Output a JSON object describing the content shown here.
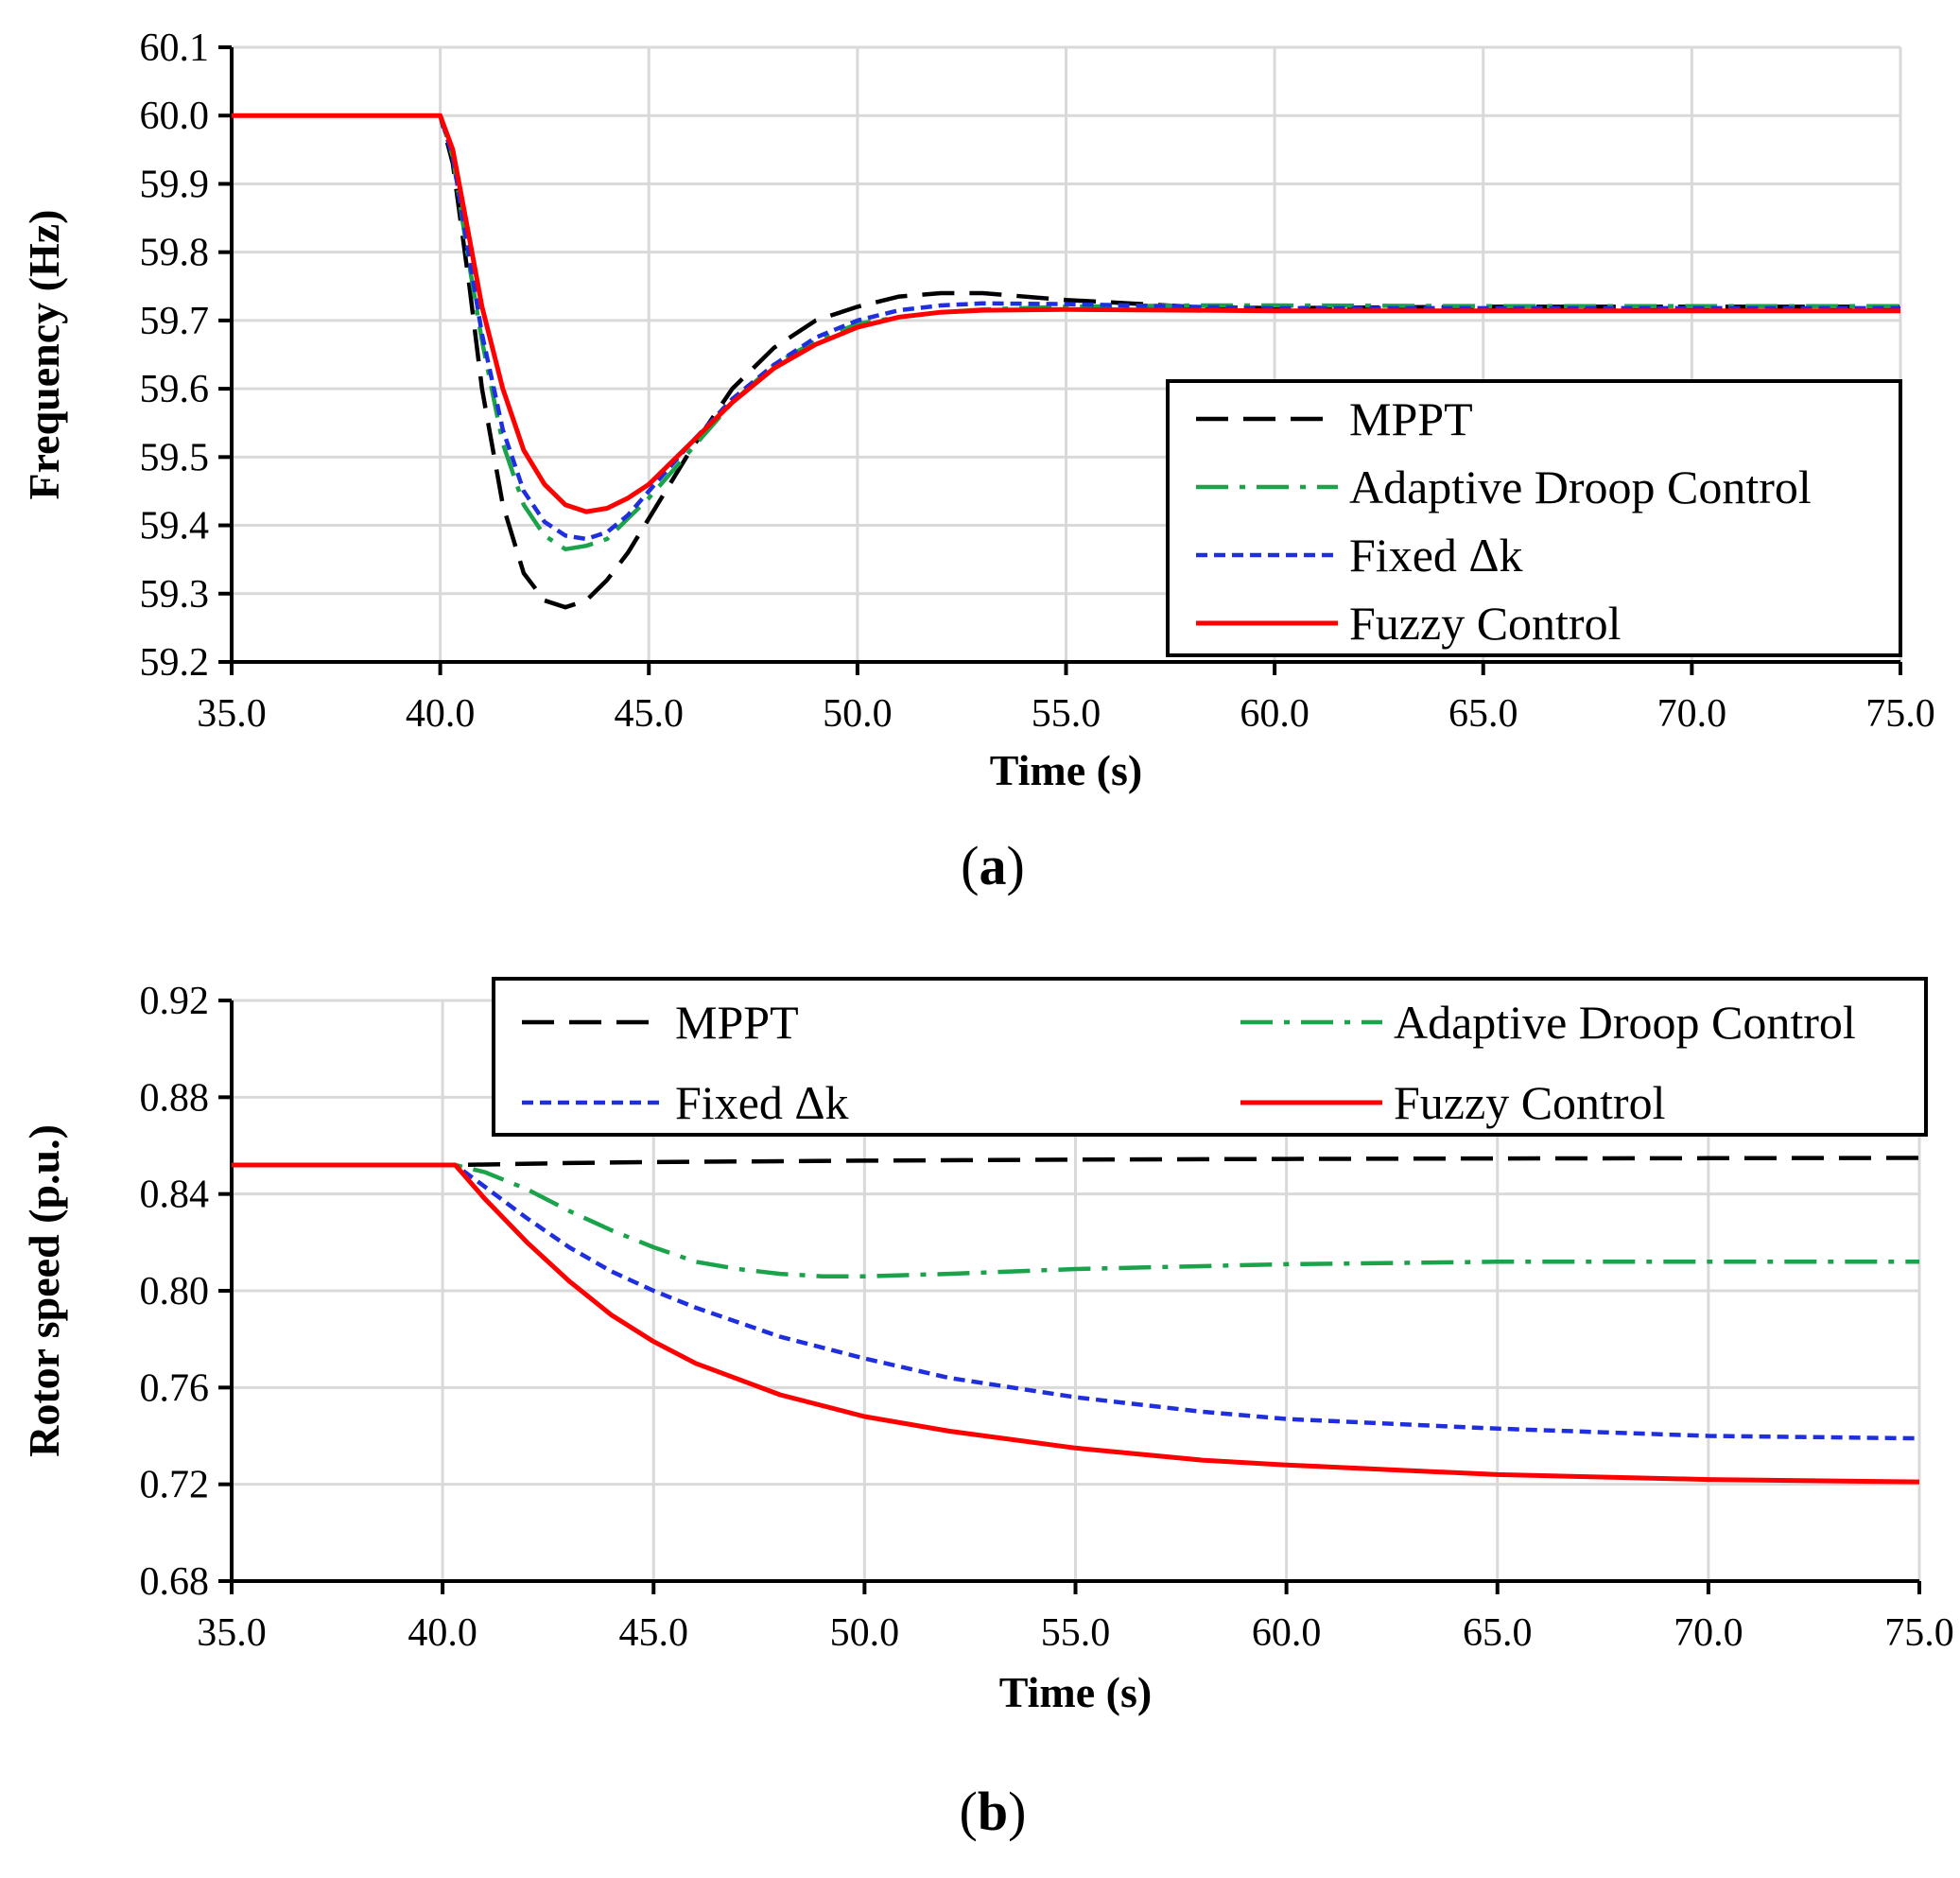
{
  "colors": {
    "mppt": "#000000",
    "adaptive": "#1aa34a",
    "fixed": "#1f2fe0",
    "fuzzy": "#ff0000"
  },
  "chart_data": [
    {
      "type": "line",
      "panel_label": "(a)",
      "panel_letter": "a",
      "xlabel": "Time (s)",
      "ylabel": "Frequency (Hz)",
      "xlim": [
        35,
        75
      ],
      "ylim": [
        59.2,
        60.1
      ],
      "xticks": [
        "35.0",
        "40.0",
        "45.0",
        "50.0",
        "55.0",
        "60.0",
        "65.0",
        "70.0",
        "75.0"
      ],
      "yticks": [
        "59.2",
        "59.3",
        "59.4",
        "59.5",
        "59.6",
        "59.7",
        "59.8",
        "59.9",
        "60.0",
        "60.1"
      ],
      "grid": true,
      "legend_position": "center-right",
      "legend_columns": 1,
      "series": [
        {
          "name": "MPPT",
          "key": "mppt",
          "dash": "dashed",
          "x": [
            35,
            40,
            40.3,
            40.7,
            41,
            41.5,
            42,
            42.5,
            43,
            43.5,
            44,
            44.5,
            45,
            46,
            47,
            48,
            49,
            50,
            51,
            52,
            53,
            55,
            58,
            60,
            65,
            70,
            75
          ],
          "y": [
            60.0,
            60.0,
            59.93,
            59.75,
            59.6,
            59.43,
            59.33,
            59.29,
            59.28,
            59.29,
            59.32,
            59.36,
            59.41,
            59.51,
            59.6,
            59.66,
            59.7,
            59.72,
            59.735,
            59.74,
            59.74,
            59.73,
            59.72,
            59.718,
            59.72,
            59.72,
            59.72
          ]
        },
        {
          "name": "Adaptive Droop Control",
          "key": "adaptive",
          "dash": "dashdot",
          "x": [
            35,
            40,
            40.3,
            40.7,
            41,
            41.5,
            42,
            42.5,
            43,
            43.5,
            44,
            44.5,
            45,
            46,
            47,
            48,
            49,
            50,
            51,
            52,
            53,
            55,
            58,
            60,
            65,
            70,
            75
          ],
          "y": [
            60.0,
            60.0,
            59.94,
            59.78,
            59.67,
            59.52,
            59.43,
            59.385,
            59.365,
            59.37,
            59.38,
            59.41,
            59.44,
            59.51,
            59.58,
            59.635,
            59.67,
            59.695,
            59.705,
            59.712,
            59.716,
            59.72,
            59.722,
            59.722,
            59.721,
            59.721,
            59.721
          ]
        },
        {
          "name": "Fixed Δk",
          "key": "fixed",
          "dash": "dotted",
          "x": [
            35,
            40,
            40.3,
            40.7,
            41,
            41.5,
            42,
            42.5,
            43,
            43.5,
            44,
            44.5,
            45,
            46,
            47,
            48,
            49,
            50,
            51,
            52,
            53,
            55,
            58,
            60,
            65,
            70,
            75
          ],
          "y": [
            60.0,
            60.0,
            59.94,
            59.79,
            59.68,
            59.54,
            59.45,
            59.405,
            59.385,
            59.38,
            59.39,
            59.415,
            59.45,
            59.52,
            59.585,
            59.635,
            59.675,
            59.7,
            59.715,
            59.722,
            59.725,
            59.724,
            59.72,
            59.718,
            59.718,
            59.718,
            59.718
          ]
        },
        {
          "name": "Fuzzy Control",
          "key": "fuzzy",
          "dash": "solid",
          "x": [
            35,
            40,
            40.3,
            40.7,
            41,
            41.5,
            42,
            42.5,
            43,
            43.5,
            44,
            44.5,
            45,
            46,
            47,
            48,
            49,
            50,
            51,
            52,
            53,
            55,
            58,
            60,
            65,
            70,
            75
          ],
          "y": [
            60.0,
            60.0,
            59.95,
            59.82,
            59.72,
            59.6,
            59.51,
            59.46,
            59.43,
            59.42,
            59.425,
            59.44,
            59.46,
            59.52,
            59.58,
            59.63,
            59.665,
            59.69,
            59.705,
            59.712,
            59.715,
            59.716,
            59.715,
            59.714,
            59.714,
            59.714,
            59.714
          ]
        }
      ]
    },
    {
      "type": "line",
      "panel_label": "(b)",
      "panel_letter": "b",
      "xlabel": "Time (s)",
      "ylabel": "Rotor speed (p.u.)",
      "xlim": [
        35,
        75
      ],
      "ylim": [
        0.68,
        0.92
      ],
      "xticks": [
        "35.0",
        "40.0",
        "45.0",
        "50.0",
        "55.0",
        "60.0",
        "65.0",
        "70.0",
        "75.0"
      ],
      "yticks": [
        "0.68",
        "0.72",
        "0.76",
        "0.80",
        "0.84",
        "0.88",
        "0.92"
      ],
      "grid": true,
      "legend_position": "top",
      "legend_columns": 2,
      "series": [
        {
          "name": "MPPT",
          "key": "mppt",
          "dash": "dashed",
          "x": [
            35,
            40.3,
            41,
            43,
            45,
            50,
            55,
            60,
            65,
            70,
            75
          ],
          "y": [
            0.852,
            0.852,
            0.8522,
            0.8528,
            0.8532,
            0.8538,
            0.8542,
            0.8545,
            0.8547,
            0.8548,
            0.8549
          ]
        },
        {
          "name": "Adaptive Droop Control",
          "key": "adaptive",
          "dash": "dashdot",
          "x": [
            35,
            40.3,
            41,
            42,
            43,
            44,
            45,
            46,
            47,
            48,
            49,
            50,
            52,
            55,
            60,
            65,
            70,
            75
          ],
          "y": [
            0.852,
            0.852,
            0.849,
            0.842,
            0.833,
            0.825,
            0.818,
            0.812,
            0.809,
            0.807,
            0.806,
            0.806,
            0.807,
            0.809,
            0.811,
            0.812,
            0.812,
            0.812
          ]
        },
        {
          "name": "Fixed Δk",
          "key": "fixed",
          "dash": "dotted",
          "x": [
            35,
            40.3,
            41,
            42,
            43,
            44,
            45,
            46,
            48,
            50,
            52,
            55,
            58,
            60,
            65,
            70,
            75
          ],
          "y": [
            0.852,
            0.852,
            0.843,
            0.83,
            0.818,
            0.808,
            0.8,
            0.793,
            0.781,
            0.772,
            0.764,
            0.756,
            0.75,
            0.747,
            0.743,
            0.74,
            0.739
          ]
        },
        {
          "name": "Fuzzy Control",
          "key": "fuzzy",
          "dash": "solid",
          "x": [
            35,
            40.3,
            41,
            42,
            43,
            44,
            45,
            46,
            48,
            50,
            52,
            55,
            58,
            60,
            65,
            70,
            75
          ],
          "y": [
            0.852,
            0.852,
            0.838,
            0.82,
            0.804,
            0.79,
            0.779,
            0.77,
            0.757,
            0.748,
            0.742,
            0.735,
            0.73,
            0.728,
            0.724,
            0.722,
            0.721
          ]
        }
      ]
    }
  ]
}
